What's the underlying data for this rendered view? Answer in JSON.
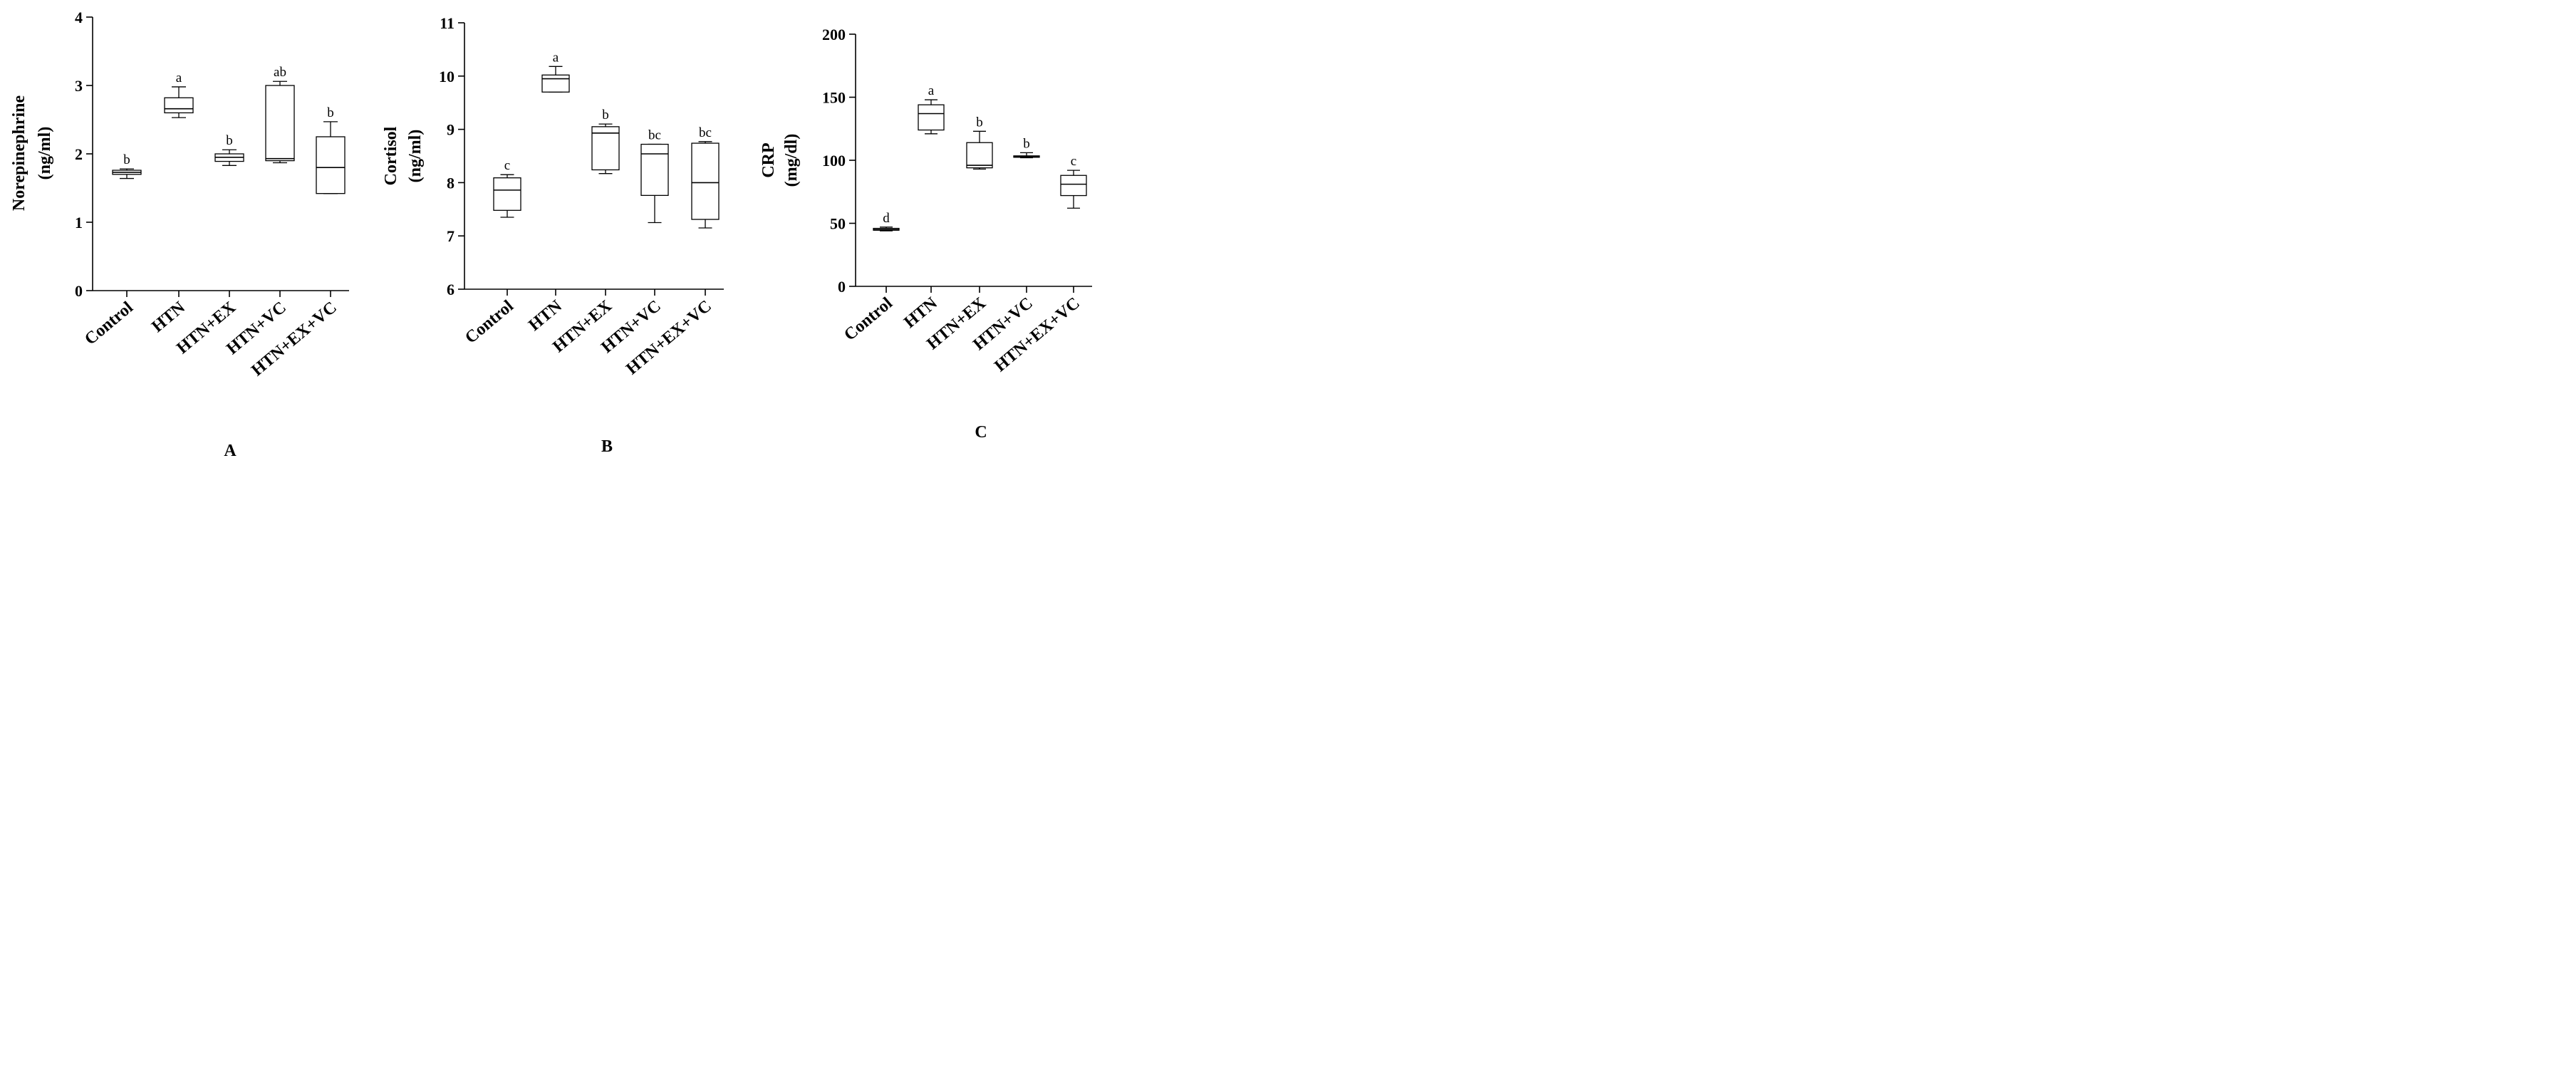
{
  "chart_data": [
    {
      "type": "box",
      "panel_label": "A",
      "ylabel_lines": [
        "Norepinephrine",
        "(ng/ml)"
      ],
      "xlabel": "",
      "ylim": [
        0,
        4
      ],
      "yticks": [
        "0",
        "1",
        "2",
        "3",
        "4"
      ],
      "categories": [
        "Control",
        "HTN",
        "HTN+EX",
        "HTN+VC",
        "HTN+EX+VC"
      ],
      "boxes": [
        {
          "min": 1.64,
          "q1": 1.7,
          "median": 1.73,
          "q3": 1.76,
          "max": 1.78,
          "letter": "b"
        },
        {
          "min": 2.53,
          "q1": 2.6,
          "median": 2.66,
          "q3": 2.82,
          "max": 2.98,
          "letter": "a"
        },
        {
          "min": 1.83,
          "q1": 1.89,
          "median": 1.95,
          "q3": 2.0,
          "max": 2.06,
          "letter": "b"
        },
        {
          "min": 1.87,
          "q1": 1.9,
          "median": 1.93,
          "q3": 3.0,
          "max": 3.06,
          "letter": "ab"
        },
        {
          "min": 1.42,
          "q1": 1.42,
          "median": 1.8,
          "q3": 2.25,
          "max": 2.47,
          "letter": "b"
        }
      ]
    },
    {
      "type": "box",
      "panel_label": "B",
      "ylabel_lines": [
        "Cortisol",
        "(ng/ml)"
      ],
      "xlabel": "",
      "ylim": [
        6,
        11
      ],
      "yticks": [
        "6",
        "7",
        "8",
        "9",
        "10",
        "11"
      ],
      "categories": [
        "Control",
        "HTN",
        "HTN+EX",
        "HTN+VC",
        "HTN+EX+VC"
      ],
      "boxes": [
        {
          "min": 7.35,
          "q1": 7.48,
          "median": 7.86,
          "q3": 8.09,
          "max": 8.15,
          "letter": "c"
        },
        {
          "min": 9.7,
          "q1": 9.7,
          "median": 9.95,
          "q3": 10.02,
          "max": 10.18,
          "letter": "a"
        },
        {
          "min": 8.17,
          "q1": 8.24,
          "median": 8.93,
          "q3": 9.05,
          "max": 9.1,
          "letter": "b"
        },
        {
          "min": 7.25,
          "q1": 7.76,
          "median": 8.54,
          "q3": 8.72,
          "max": 8.72,
          "letter": "bc"
        },
        {
          "min": 7.15,
          "q1": 7.31,
          "median": 8.0,
          "q3": 8.74,
          "max": 8.77,
          "letter": "bc"
        }
      ]
    },
    {
      "type": "box",
      "panel_label": "C",
      "ylabel_lines": [
        "CRP",
        "(mg/dl)"
      ],
      "xlabel": "",
      "ylim": [
        0,
        200
      ],
      "yticks": [
        "0",
        "50",
        "100",
        "150",
        "200"
      ],
      "categories": [
        "Control",
        "HTN",
        "HTN+EX",
        "HTN+VC",
        "HTN+EX+VC"
      ],
      "boxes": [
        {
          "min": 44,
          "q1": 44.5,
          "median": 45,
          "q3": 46,
          "max": 47,
          "letter": "d"
        },
        {
          "min": 121,
          "q1": 124,
          "median": 137,
          "q3": 144,
          "max": 148,
          "letter": "a"
        },
        {
          "min": 93,
          "q1": 94,
          "median": 96,
          "q3": 114,
          "max": 123,
          "letter": "b"
        },
        {
          "min": 102,
          "q1": 102.5,
          "median": 103,
          "q3": 103.5,
          "max": 106,
          "letter": "b"
        },
        {
          "min": 62,
          "q1": 72,
          "median": 81,
          "q3": 88,
          "max": 92,
          "letter": "c"
        }
      ]
    }
  ]
}
